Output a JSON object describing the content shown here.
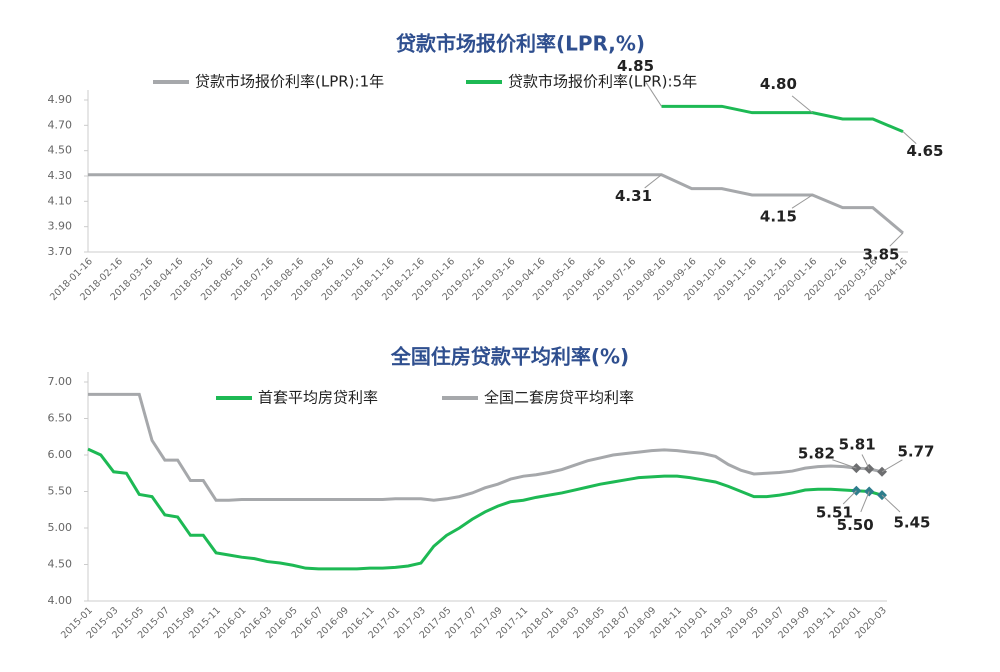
{
  "chart_data": [
    {
      "type": "line",
      "title": "贷款市场报价利率(LPR,%)",
      "categories": [
        "2018-01-16",
        "2018-02-16",
        "2018-03-16",
        "2018-04-16",
        "2018-05-16",
        "2018-06-16",
        "2018-07-16",
        "2018-08-16",
        "2018-09-16",
        "2018-10-16",
        "2018-11-16",
        "2018-12-16",
        "2019-01-16",
        "2019-02-16",
        "2019-03-16",
        "2019-04-16",
        "2019-05-16",
        "2019-06-16",
        "2019-07-16",
        "2019-08-16",
        "2019-09-16",
        "2019-10-16",
        "2019-11-16",
        "2019-12-16",
        "2020-01-16",
        "2020-02-16",
        "2020-03-16",
        "2020-04-16"
      ],
      "series": [
        {
          "name": "贷款市场报价利率(LPR):1年",
          "color": "#a6a8ab",
          "values": [
            4.31,
            4.31,
            4.31,
            4.31,
            4.31,
            4.31,
            4.31,
            4.31,
            4.31,
            4.31,
            4.31,
            4.31,
            4.31,
            4.31,
            4.31,
            4.31,
            4.31,
            4.31,
            4.31,
            4.31,
            4.2,
            4.2,
            4.15,
            4.15,
            4.15,
            4.05,
            4.05,
            3.85
          ],
          "value_labels": [
            null,
            null,
            null,
            null,
            null,
            null,
            null,
            null,
            null,
            null,
            null,
            null,
            null,
            null,
            null,
            null,
            null,
            null,
            null,
            "4.31",
            null,
            null,
            null,
            null,
            "4.15",
            null,
            null,
            "3.85"
          ]
        },
        {
          "name": "贷款市场报价利率(LPR):5年",
          "color": "#1db954",
          "values": [
            null,
            null,
            null,
            null,
            null,
            null,
            null,
            null,
            null,
            null,
            null,
            null,
            null,
            null,
            null,
            null,
            null,
            null,
            null,
            4.85,
            4.85,
            4.85,
            4.8,
            4.8,
            4.8,
            4.75,
            4.75,
            4.65
          ],
          "value_labels": [
            null,
            null,
            null,
            null,
            null,
            null,
            null,
            null,
            null,
            null,
            null,
            null,
            null,
            null,
            null,
            null,
            null,
            null,
            null,
            "4.85",
            null,
            null,
            null,
            null,
            "4.80",
            null,
            null,
            "4.65"
          ]
        }
      ],
      "ylim": [
        3.7,
        4.9
      ],
      "yticks": [
        {
          "value": 3.7,
          "label": "3.70"
        },
        {
          "value": 3.9,
          "label": "3.90"
        },
        {
          "value": 4.1,
          "label": "4.10"
        },
        {
          "value": 4.3,
          "label": "4.30"
        },
        {
          "value": 4.5,
          "label": "4.50"
        },
        {
          "value": 4.7,
          "label": "4.70"
        },
        {
          "value": 4.9,
          "label": "4.90"
        }
      ]
    },
    {
      "type": "line",
      "title": "全国住房贷款平均利率(%)",
      "categories": [
        "2015-01",
        null,
        "2015-03",
        null,
        "2015-05",
        null,
        "2015-07",
        null,
        "2015-09",
        null,
        "2015-11",
        null,
        "2016-01",
        null,
        "2016-03",
        null,
        "2016-05",
        null,
        "2016-07",
        null,
        "2016-09",
        null,
        "2016-11",
        null,
        "2017-01",
        null,
        "2017-03",
        null,
        "2017-05",
        null,
        "2017-07",
        null,
        "2017-09",
        null,
        "2017-11",
        null,
        "2018-01",
        null,
        "2018-03",
        null,
        "2018-05",
        null,
        "2018-07",
        null,
        "2018-09",
        null,
        "2018-11",
        null,
        "2019-01",
        null,
        "2019-03",
        null,
        "2019-05",
        null,
        "2019-07",
        null,
        "2019-09",
        null,
        "2019-11",
        null,
        "2020-01",
        null,
        "2020-03"
      ],
      "series": [
        {
          "name": "首套平均房贷利率",
          "color": "#1db954",
          "marker_color": "#2e7d8c",
          "values": [
            6.08,
            6.0,
            5.77,
            5.75,
            5.46,
            5.43,
            5.18,
            5.15,
            4.9,
            4.9,
            4.66,
            4.63,
            4.6,
            4.58,
            4.54,
            4.52,
            4.49,
            4.45,
            4.44,
            4.44,
            4.44,
            4.44,
            4.45,
            4.45,
            4.46,
            4.48,
            4.52,
            4.75,
            4.9,
            5.0,
            5.12,
            5.22,
            5.3,
            5.36,
            5.38,
            5.42,
            5.45,
            5.48,
            5.52,
            5.56,
            5.6,
            5.63,
            5.66,
            5.69,
            5.7,
            5.71,
            5.71,
            5.69,
            5.66,
            5.63,
            5.57,
            5.5,
            5.43,
            5.43,
            5.45,
            5.48,
            5.52,
            5.53,
            5.53,
            5.52,
            5.51,
            5.5,
            5.45
          ],
          "value_labels": [
            null,
            null,
            null,
            null,
            null,
            null,
            null,
            null,
            null,
            null,
            null,
            null,
            null,
            null,
            null,
            null,
            null,
            null,
            null,
            null,
            null,
            null,
            null,
            null,
            null,
            null,
            null,
            null,
            null,
            null,
            null,
            null,
            null,
            null,
            null,
            null,
            null,
            null,
            null,
            null,
            null,
            null,
            null,
            null,
            null,
            null,
            null,
            null,
            null,
            null,
            null,
            null,
            null,
            null,
            null,
            null,
            null,
            null,
            null,
            null,
            "5.51",
            "5.50",
            "5.45"
          ]
        },
        {
          "name": "全国二套房贷平均利率",
          "color": "#a6a8ab",
          "marker_color": "#6d6e70",
          "values": [
            6.83,
            6.83,
            6.83,
            6.83,
            6.83,
            6.2,
            5.93,
            5.93,
            5.65,
            5.65,
            5.38,
            5.38,
            5.39,
            5.39,
            5.39,
            5.39,
            5.39,
            5.39,
            5.39,
            5.39,
            5.39,
            5.39,
            5.39,
            5.39,
            5.4,
            5.4,
            5.4,
            5.38,
            5.4,
            5.43,
            5.48,
            5.55,
            5.6,
            5.67,
            5.71,
            5.73,
            5.76,
            5.8,
            5.86,
            5.92,
            5.96,
            6.0,
            6.02,
            6.04,
            6.06,
            6.07,
            6.06,
            6.04,
            6.02,
            5.98,
            5.87,
            5.79,
            5.74,
            5.75,
            5.76,
            5.78,
            5.82,
            5.84,
            5.85,
            5.84,
            5.82,
            5.81,
            5.77
          ],
          "value_labels": [
            null,
            null,
            null,
            null,
            null,
            null,
            null,
            null,
            null,
            null,
            null,
            null,
            null,
            null,
            null,
            null,
            null,
            null,
            null,
            null,
            null,
            null,
            null,
            null,
            null,
            null,
            null,
            null,
            null,
            null,
            null,
            null,
            null,
            null,
            null,
            null,
            null,
            null,
            null,
            null,
            null,
            null,
            null,
            null,
            null,
            null,
            null,
            null,
            null,
            null,
            null,
            null,
            null,
            null,
            null,
            null,
            null,
            null,
            null,
            null,
            "5.82",
            "5.81",
            "5.77"
          ]
        }
      ],
      "markers": "diamond",
      "ylim": [
        4.0,
        7.0
      ],
      "yticks": [
        {
          "value": 4.0,
          "label": "4.00"
        },
        {
          "value": 4.5,
          "label": "4.50"
        },
        {
          "value": 5.0,
          "label": "5.00"
        },
        {
          "value": 5.5,
          "label": "5.50"
        },
        {
          "value": 6.0,
          "label": "6.00"
        },
        {
          "value": 6.5,
          "label": "6.50"
        },
        {
          "value": 7.0,
          "label": "7.00"
        }
      ]
    }
  ]
}
